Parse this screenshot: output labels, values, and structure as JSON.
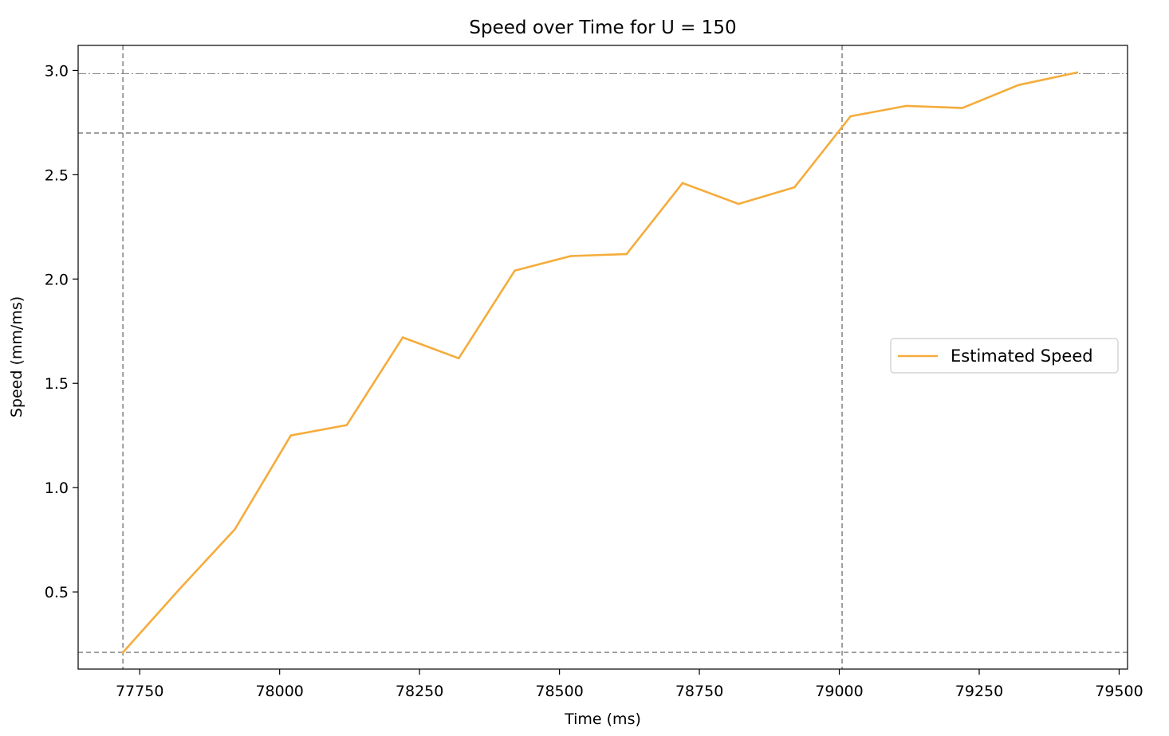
{
  "chart_data": {
    "type": "line",
    "title": "Speed over Time for U = 150",
    "xlabel": "Time (ms)",
    "ylabel": "Speed (mm/ms)",
    "xlim": [
      77640,
      79515
    ],
    "ylim": [
      0.13,
      3.12
    ],
    "xticks": [
      77750,
      78000,
      78250,
      78500,
      78750,
      79000,
      79250,
      79500
    ],
    "yticks": [
      0.5,
      1.0,
      1.5,
      2.0,
      2.5,
      3.0
    ],
    "xtick_labels": [
      "77750",
      "78000",
      "78250",
      "78500",
      "78750",
      "79000",
      "79250",
      "79500"
    ],
    "ytick_labels": [
      "0.5",
      "1.0",
      "1.5",
      "2.0",
      "2.5",
      "3.0"
    ],
    "grid": false,
    "legend": {
      "position": "center-right",
      "entries": [
        "Estimated Speed"
      ]
    },
    "series": [
      {
        "name": "Estimated Speed",
        "color": "#f5ac3b",
        "x": [
          77720,
          77820,
          77920,
          78020,
          78120,
          78220,
          78320,
          78420,
          78520,
          78620,
          78720,
          78820,
          78920,
          79020,
          79120,
          79220,
          79320,
          79425
        ],
        "y": [
          0.21,
          0.51,
          0.8,
          1.25,
          1.3,
          1.72,
          1.62,
          2.04,
          2.11,
          2.12,
          2.46,
          2.36,
          2.44,
          2.78,
          2.83,
          2.82,
          2.93,
          2.99
        ]
      }
    ],
    "reference_lines": {
      "vertical": [
        {
          "x": 77720,
          "style": "dashed"
        },
        {
          "x": 79005,
          "style": "dashed"
        }
      ],
      "horizontal": [
        {
          "y": 0.21,
          "style": "dashed"
        },
        {
          "y": 2.7,
          "style": "dashed"
        },
        {
          "y": 2.985,
          "style": "dashdot"
        }
      ],
      "color": "#808080"
    }
  }
}
